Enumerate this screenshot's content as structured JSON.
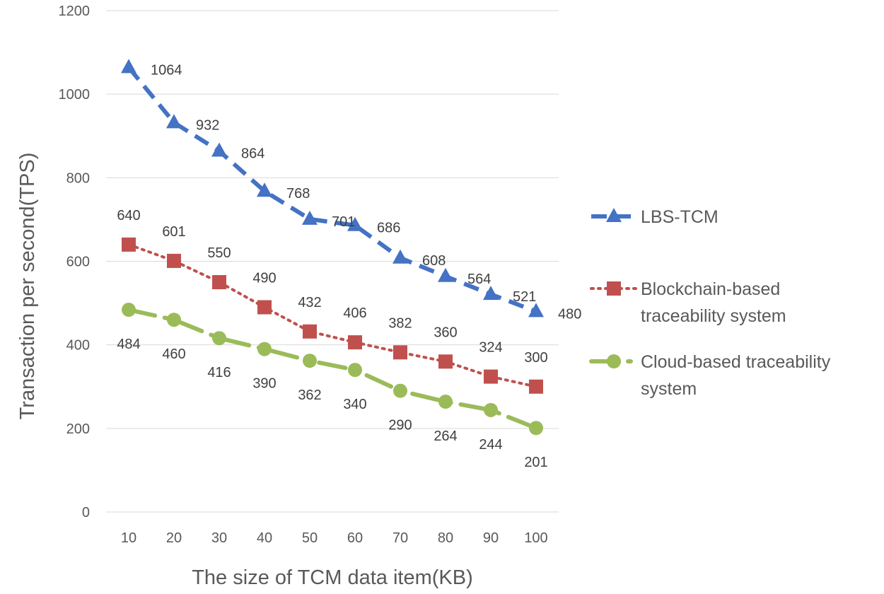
{
  "chart_data": {
    "type": "line",
    "title": "",
    "xlabel": "The size of TCM data item(KB)",
    "ylabel": "Transaction per second(TPS)",
    "x": [
      10,
      20,
      30,
      40,
      50,
      60,
      70,
      80,
      90,
      100
    ],
    "ylim": [
      0,
      1200
    ],
    "yticks": [
      0,
      200,
      400,
      600,
      800,
      1000,
      1200
    ],
    "grid": true,
    "legend_position": "right",
    "series": [
      {
        "name": "LBS-TCM",
        "legend_lines": [
          "LBS-TCM"
        ],
        "values": [
          1064,
          932,
          864,
          768,
          701,
          686,
          608,
          564,
          521,
          480
        ],
        "labels": [
          "1064",
          "932",
          "864",
          "768",
          "701",
          "686",
          "608",
          "564",
          "521",
          "480"
        ],
        "color": "#4472c4",
        "marker": "triangle",
        "line_style": "dash"
      },
      {
        "name": "Blockchain-based traceability system",
        "legend_lines": [
          "Blockchain-based",
          "traceability system"
        ],
        "values": [
          640,
          601,
          550,
          490,
          432,
          406,
          382,
          360,
          324,
          300
        ],
        "labels": [
          "640",
          "601",
          "550",
          "490",
          "432",
          "406",
          "382",
          "360",
          "324",
          "300"
        ],
        "color": "#c0504d",
        "marker": "square",
        "line_style": "dot"
      },
      {
        "name": "Cloud-based traceability system",
        "legend_lines": [
          "Cloud-based traceability",
          "system"
        ],
        "values": [
          484,
          460,
          416,
          390,
          362,
          340,
          290,
          264,
          244,
          201
        ],
        "labels": [
          "484",
          "460",
          "416",
          "390",
          "362",
          "340",
          "290",
          "264",
          "244",
          "201"
        ],
        "color": "#9bbb59",
        "marker": "circle",
        "line_style": "long-dash-dot"
      }
    ]
  }
}
